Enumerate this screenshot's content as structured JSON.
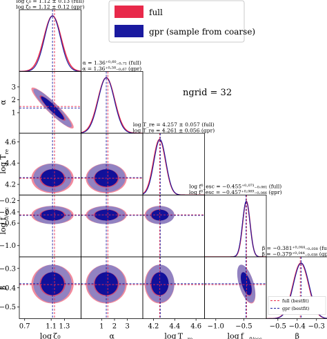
{
  "chart_data": {
    "type": "corner",
    "params": [
      "logζ₀",
      "α",
      "logT_re",
      "logf⁰_esc",
      "β"
    ],
    "axis_labels": {
      "x": [
        "log ζ₀",
        "α",
        "log T",
        "log f",
        "β"
      ],
      "x_sub": [
        "",
        "",
        "re",
        "0/esc",
        ""
      ],
      "y": [
        "",
        "α",
        "log T",
        "log f",
        "β"
      ],
      "y_sub": [
        "",
        "",
        "re",
        "0/esc",
        ""
      ]
    },
    "ranges": [
      [
        0.62,
        1.55
      ],
      [
        -0.6,
        4.2
      ],
      [
        4.1,
        4.68
      ],
      [
        -1.2,
        -0.1
      ],
      [
        -0.56,
        -0.24
      ]
    ],
    "ticks": [
      [
        "0.7",
        "1.1",
        "1.3"
      ],
      [
        "1",
        "2",
        "3"
      ],
      [
        "4.2",
        "4.4",
        "4.6"
      ],
      [
        "−1.0",
        "−0.5"
      ],
      [
        "−0.5",
        "−0.4",
        "−0.3"
      ]
    ],
    "tick_values": [
      [
        0.7,
        1.1,
        1.3
      ],
      [
        1,
        2,
        3
      ],
      [
        4.2,
        4.4,
        4.6
      ],
      [
        -1.0,
        -0.5
      ],
      [
        -0.5,
        -0.4,
        -0.3
      ]
    ],
    "y_ticks": [
      [],
      [
        "1",
        "2",
        "3"
      ],
      [
        "4.2",
        "4.4",
        "4.6"
      ],
      [
        "−0.2",
        "−0.4",
        "−0.6",
        "−1.0"
      ],
      [
        "−0.3",
        "−0.4",
        "−0.5"
      ]
    ],
    "y_tick_values": [
      [],
      [
        1,
        2,
        3
      ],
      [
        4.2,
        4.4,
        4.6
      ],
      [
        -0.2,
        -0.4,
        -0.6,
        -1.0
      ],
      [
        -0.3,
        -0.4,
        -0.5
      ]
    ],
    "marginal_titles": [
      [
        "log ζ₀ = 1.12 ± 0.13 (full)",
        "log ζ₀ = 1.12 ± 0.12 (gpr)"
      ],
      [
        "α = 1.36⁺⁰·⁶⁰₋₀.₇₁ (full)",
        "α = 1.36⁺⁰·⁵⁸₋₀.₆₇ (gpr)"
      ],
      [
        "log T_re = 4.257 ± 0.057 (full)",
        "log T_re = 4.261 ± 0.056 (gpr)"
      ],
      [
        "log f⁰_esc = −0.455⁺⁰·⁰⁷¹₋₀.₀₆₁ (full)",
        "log f⁰_esc = −0.457⁺⁰·⁰⁶⁹₋₀.₀₆₆ (gpr)"
      ],
      [
        "β = −0.381⁺⁰·⁰⁴⁴₋₀.₀₃₈ (full)",
        "β = −0.379⁺⁰·⁰⁴⁴₋₀.₀₃₈ (gpr)"
      ]
    ],
    "series": [
      {
        "name": "full",
        "color": "#e8294a",
        "mean": [
          1.12,
          1.36,
          4.257,
          -0.455,
          -0.381
        ],
        "sigma": [
          0.13,
          0.65,
          0.057,
          0.066,
          0.041
        ]
      },
      {
        "name": "gpr (sample from coarse)",
        "color": "#1a1aa0",
        "mean": [
          1.12,
          1.36,
          4.261,
          -0.457,
          -0.379
        ],
        "sigma": [
          0.12,
          0.62,
          0.056,
          0.067,
          0.041
        ]
      }
    ],
    "bestfit": {
      "full": [
        1.15,
        1.48,
        4.258,
        -0.452,
        -0.384
      ],
      "gpr": [
        1.12,
        1.36,
        4.264,
        -0.462,
        -0.379
      ]
    },
    "correlations": [
      [
        0,
        1,
        -0.93
      ],
      [
        3,
        4,
        -0.55
      ]
    ],
    "legend": {
      "position": "top-center",
      "entries": [
        "full",
        "gpr (sample from coarse)"
      ]
    },
    "inset_legend": {
      "position": "bottom-right",
      "entries": [
        "full (bestfit)",
        "gpr (bestfit)"
      ]
    },
    "annotation": "ngrid = 32"
  }
}
